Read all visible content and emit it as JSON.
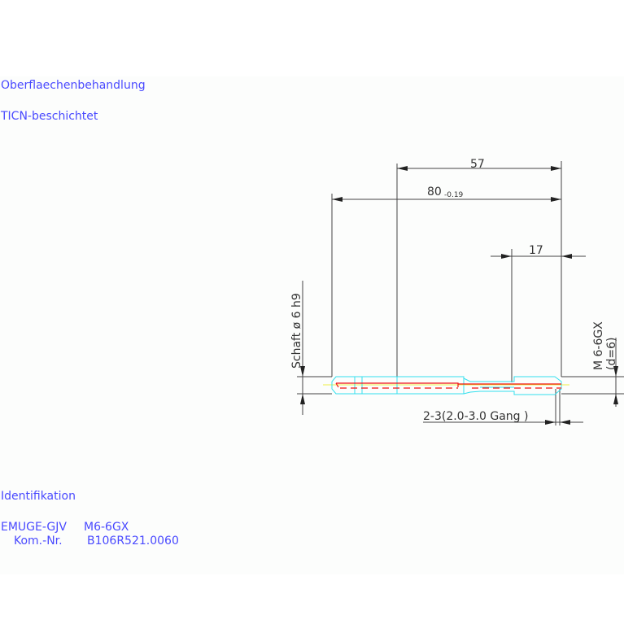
{
  "surface": {
    "heading": "Oberflaechenbehandlung",
    "value": "TICN-beschichtet"
  },
  "identification": {
    "heading": "Identifikation",
    "product_label": "EMUGE-GJV",
    "product_value": "M6-6GX",
    "kom_label": "Kom.-Nr.",
    "kom_value": "B106R521.0060"
  },
  "dimensions": {
    "d57": "57",
    "d80": "80",
    "d80_tol": "-0.19",
    "d17": "17",
    "shaft": "Schaft ø 6 h9",
    "thread": "M 6-6GX",
    "thread_d": "(d=6)",
    "chamfer": "2-3(2.0-3.0 Gang  )"
  },
  "colors": {
    "text_blue": "#4a4aff",
    "outline_cyan": "#33e0ee",
    "hidden_red": "#ee1111",
    "centerline_yellow": "#eeee44"
  }
}
